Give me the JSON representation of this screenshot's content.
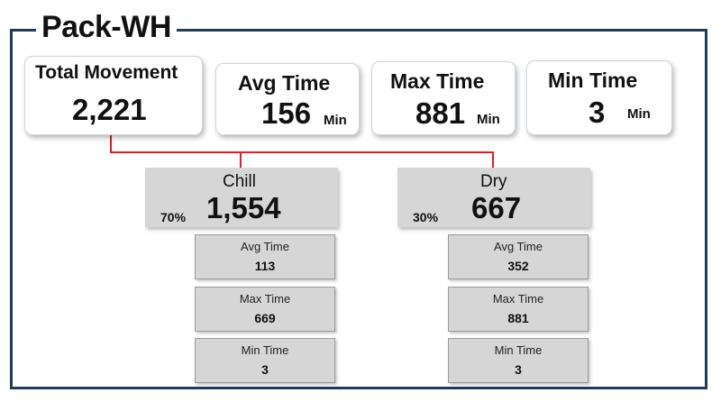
{
  "title": "Pack-WH",
  "summary": {
    "total_movement": {
      "label": "Total Movement",
      "value": "2,221"
    },
    "avg_time": {
      "label": "Avg Time",
      "value": "156",
      "unit": "Min"
    },
    "max_time": {
      "label": "Max Time",
      "value": "881",
      "unit": "Min"
    },
    "min_time": {
      "label": "Min Time",
      "value": "3",
      "unit": "Min"
    }
  },
  "segments": [
    {
      "name": "Chill",
      "percent": "70%",
      "value": "1,554",
      "stats": [
        {
          "label": "Avg Time",
          "value": "113"
        },
        {
          "label": "Max Time",
          "value": "669"
        },
        {
          "label": "Min Time",
          "value": "3"
        }
      ]
    },
    {
      "name": "Dry",
      "percent": "30%",
      "value": "667",
      "stats": [
        {
          "label": "Avg Time",
          "value": "352"
        },
        {
          "label": "Max Time",
          "value": "881"
        },
        {
          "label": "Min Time",
          "value": "3"
        }
      ]
    }
  ],
  "colors": {
    "frame": "#1f3b57",
    "connector": "#e02020",
    "segment_fill": "#d6d6d6",
    "card_fill": "#ffffff"
  }
}
